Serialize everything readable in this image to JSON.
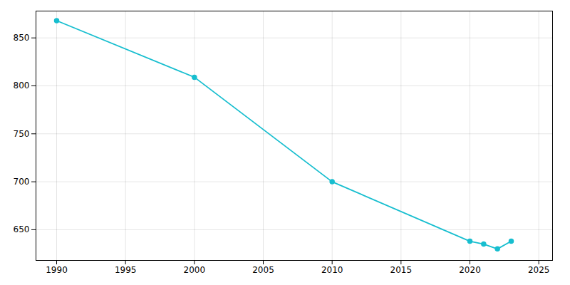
{
  "chart_data": {
    "type": "line",
    "x": [
      1990,
      2000,
      2010,
      2020,
      2021,
      2022,
      2023
    ],
    "values": [
      868,
      809,
      700,
      638,
      635,
      630,
      638
    ],
    "color": "#17becf",
    "marker": "circle",
    "xlim": [
      1988.5,
      2026
    ],
    "ylim": [
      618,
      878
    ],
    "xticks": [
      1990,
      1995,
      2000,
      2005,
      2010,
      2015,
      2020,
      2025
    ],
    "yticks": [
      650,
      700,
      750,
      800,
      850
    ],
    "grid": true
  }
}
